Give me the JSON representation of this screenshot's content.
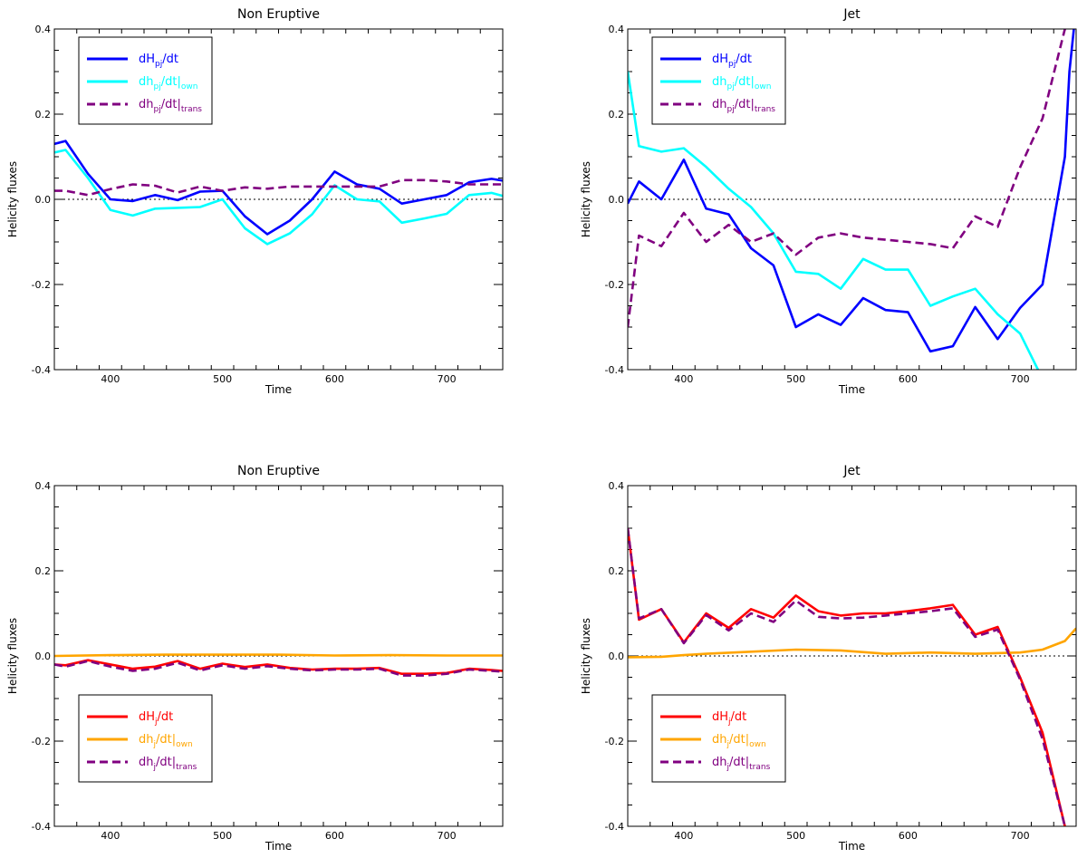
{
  "chart_data": [
    {
      "type": "line",
      "title": "Non Eruptive",
      "xlabel": "Time",
      "ylabel": "Helicity fluxes",
      "xlim": [
        350,
        750
      ],
      "ylim": [
        -0.4,
        0.4
      ],
      "xticks": [
        400,
        500,
        600,
        700
      ],
      "yticks": [
        -0.4,
        -0.2,
        0.0,
        0.2,
        0.4
      ],
      "ytick_labels": [
        "-0.4",
        "-0.2",
        "0.0",
        "0.2",
        "0.4"
      ],
      "legend_position": "top-left",
      "series": [
        {
          "name": "dH_pj/dt",
          "label": {
            "base": "dH",
            "sub": "pj",
            "rest": "/dt",
            "bar": false,
            "tail": ""
          },
          "color": "#0000ff",
          "dash": "solid",
          "x": [
            350,
            360,
            380,
            400,
            420,
            440,
            460,
            480,
            500,
            520,
            540,
            560,
            580,
            600,
            620,
            640,
            660,
            680,
            700,
            720,
            740,
            750
          ],
          "y": [
            0.13,
            0.137,
            0.06,
            0.0,
            -0.004,
            0.01,
            -0.002,
            0.018,
            0.02,
            -0.04,
            -0.082,
            -0.05,
            0.0,
            0.065,
            0.035,
            0.025,
            -0.01,
            0.0,
            0.01,
            0.04,
            0.048,
            0.044
          ]
        },
        {
          "name": "dh_pj/dt|own",
          "label": {
            "base": "dh",
            "sub": "pj",
            "rest": "/dt",
            "bar": true,
            "tail": "own"
          },
          "color": "#00ffff",
          "dash": "solid",
          "x": [
            350,
            360,
            380,
            400,
            420,
            440,
            460,
            480,
            500,
            520,
            540,
            560,
            580,
            600,
            620,
            640,
            660,
            680,
            700,
            720,
            740,
            750
          ],
          "y": [
            0.11,
            0.116,
            0.05,
            -0.025,
            -0.038,
            -0.022,
            -0.02,
            -0.018,
            0.0,
            -0.068,
            -0.105,
            -0.08,
            -0.035,
            0.033,
            0.0,
            -0.005,
            -0.055,
            -0.045,
            -0.034,
            0.01,
            0.015,
            0.008
          ]
        },
        {
          "name": "dh_pj/dt|trans",
          "label": {
            "base": "dh",
            "sub": "pj",
            "rest": "/dt",
            "bar": true,
            "tail": "trans"
          },
          "color": "#800080",
          "dash": "dashed",
          "x": [
            350,
            360,
            380,
            400,
            420,
            440,
            460,
            480,
            500,
            520,
            540,
            560,
            580,
            600,
            620,
            640,
            660,
            680,
            700,
            720,
            740,
            750
          ],
          "y": [
            0.02,
            0.02,
            0.01,
            0.024,
            0.035,
            0.032,
            0.016,
            0.03,
            0.02,
            0.028,
            0.025,
            0.03,
            0.03,
            0.03,
            0.03,
            0.03,
            0.045,
            0.045,
            0.042,
            0.035,
            0.035,
            0.035
          ]
        }
      ]
    },
    {
      "type": "line",
      "title": "Jet",
      "xlabel": "Time",
      "ylabel": "Helicity fluxes",
      "xlim": [
        350,
        750
      ],
      "ylim": [
        -0.4,
        0.4
      ],
      "xticks": [
        400,
        500,
        600,
        700
      ],
      "yticks": [
        -0.4,
        -0.2,
        0.0,
        0.2,
        0.4
      ],
      "ytick_labels": [
        "-0.4",
        "-0.2",
        "0.0",
        "0.2",
        "0.4"
      ],
      "legend_position": "top-left",
      "series": [
        {
          "name": "dH_pj/dt",
          "label": {
            "base": "dH",
            "sub": "pj",
            "rest": "/dt",
            "bar": false,
            "tail": ""
          },
          "color": "#0000ff",
          "dash": "solid",
          "x": [
            350,
            360,
            380,
            400,
            420,
            440,
            460,
            480,
            500,
            520,
            540,
            560,
            580,
            600,
            620,
            640,
            660,
            680,
            700,
            720,
            740,
            744,
            748
          ],
          "y": [
            -0.01,
            0.042,
            0.0,
            0.093,
            -0.022,
            -0.035,
            -0.115,
            -0.155,
            -0.3,
            -0.27,
            -0.295,
            -0.232,
            -0.26,
            -0.265,
            -0.357,
            -0.345,
            -0.253,
            -0.328,
            -0.255,
            -0.2,
            0.1,
            0.3,
            0.4
          ]
        },
        {
          "name": "dh_pj/dt|own",
          "label": {
            "base": "dh",
            "sub": "pj",
            "rest": "/dt",
            "bar": true,
            "tail": "own"
          },
          "color": "#00ffff",
          "dash": "solid",
          "x": [
            350,
            360,
            380,
            400,
            420,
            440,
            460,
            480,
            500,
            520,
            540,
            560,
            580,
            600,
            620,
            640,
            660,
            680,
            700,
            716
          ],
          "y": [
            0.3,
            0.125,
            0.112,
            0.12,
            0.076,
            0.025,
            -0.018,
            -0.08,
            -0.17,
            -0.175,
            -0.21,
            -0.14,
            -0.165,
            -0.165,
            -0.25,
            -0.228,
            -0.21,
            -0.27,
            -0.315,
            -0.4
          ]
        },
        {
          "name": "dh_pj/dt|trans",
          "label": {
            "base": "dh",
            "sub": "pj",
            "rest": "/dt",
            "bar": true,
            "tail": "trans"
          },
          "color": "#800080",
          "dash": "dashed",
          "x": [
            350,
            360,
            380,
            400,
            420,
            440,
            460,
            480,
            500,
            520,
            540,
            560,
            580,
            600,
            620,
            640,
            660,
            680,
            700,
            720,
            740,
            745
          ],
          "y": [
            -0.3,
            -0.085,
            -0.11,
            -0.032,
            -0.1,
            -0.06,
            -0.1,
            -0.08,
            -0.13,
            -0.09,
            -0.08,
            -0.09,
            -0.095,
            -0.1,
            -0.105,
            -0.115,
            -0.04,
            -0.065,
            0.075,
            0.19,
            0.4,
            0.4
          ]
        }
      ]
    },
    {
      "type": "line",
      "title": "Non Eruptive",
      "xlabel": "Time",
      "ylabel": "Helicity fluxes",
      "xlim": [
        350,
        750
      ],
      "ylim": [
        -0.4,
        0.4
      ],
      "xticks": [
        400,
        500,
        600,
        700
      ],
      "yticks": [
        -0.4,
        -0.2,
        0.0,
        0.2,
        0.4
      ],
      "ytick_labels": [
        "-0.4",
        "-0.2",
        "0.0",
        "0.2",
        "0.4"
      ],
      "legend_position": "bottom-left",
      "series": [
        {
          "name": "dH_j/dt",
          "label": {
            "base": "dH",
            "sub": "j",
            "rest": "/dt",
            "bar": false,
            "tail": ""
          },
          "color": "#ff0000",
          "dash": "solid",
          "x": [
            350,
            360,
            380,
            400,
            420,
            440,
            460,
            480,
            500,
            520,
            540,
            560,
            580,
            600,
            620,
            640,
            660,
            680,
            700,
            720,
            740,
            750
          ],
          "y": [
            -0.02,
            -0.022,
            -0.01,
            -0.02,
            -0.03,
            -0.025,
            -0.012,
            -0.03,
            -0.018,
            -0.026,
            -0.02,
            -0.028,
            -0.032,
            -0.03,
            -0.03,
            -0.028,
            -0.042,
            -0.042,
            -0.04,
            -0.03,
            -0.033,
            -0.035
          ]
        },
        {
          "name": "dh_j/dt|own",
          "label": {
            "base": "dh",
            "sub": "j",
            "rest": "/dt",
            "bar": true,
            "tail": "own"
          },
          "color": "#ffa500",
          "dash": "solid",
          "x": [
            350,
            400,
            450,
            500,
            550,
            600,
            650,
            700,
            750
          ],
          "y": [
            0.0,
            0.002,
            0.003,
            0.003,
            0.003,
            0.001,
            0.002,
            0.001,
            0.001
          ]
        },
        {
          "name": "dh_j/dt|trans",
          "label": {
            "base": "dh",
            "sub": "j",
            "rest": "/dt",
            "bar": true,
            "tail": "trans"
          },
          "color": "#800080",
          "dash": "dashed",
          "x": [
            350,
            360,
            380,
            400,
            420,
            440,
            460,
            480,
            500,
            520,
            540,
            560,
            580,
            600,
            620,
            640,
            660,
            680,
            700,
            720,
            740,
            750
          ],
          "y": [
            -0.02,
            -0.025,
            -0.012,
            -0.025,
            -0.035,
            -0.03,
            -0.016,
            -0.034,
            -0.022,
            -0.03,
            -0.024,
            -0.03,
            -0.034,
            -0.032,
            -0.032,
            -0.03,
            -0.046,
            -0.046,
            -0.042,
            -0.032,
            -0.035,
            -0.037
          ]
        }
      ]
    },
    {
      "type": "line",
      "title": "Jet",
      "xlabel": "Time",
      "ylabel": "Helicity fluxes",
      "xlim": [
        350,
        750
      ],
      "ylim": [
        -0.4,
        0.4
      ],
      "xticks": [
        400,
        500,
        600,
        700
      ],
      "yticks": [
        -0.4,
        -0.2,
        0.0,
        0.2,
        0.4
      ],
      "ytick_labels": [
        "-0.4",
        "-0.2",
        "0.0",
        "0.2",
        "0.4"
      ],
      "legend_position": "bottom-left",
      "series": [
        {
          "name": "dH_j/dt",
          "label": {
            "base": "dH",
            "sub": "j",
            "rest": "/dt",
            "bar": false,
            "tail": ""
          },
          "color": "#ff0000",
          "dash": "solid",
          "x": [
            350,
            360,
            380,
            400,
            420,
            440,
            460,
            480,
            500,
            520,
            540,
            560,
            580,
            600,
            620,
            640,
            660,
            680,
            700,
            720,
            740
          ],
          "y": [
            0.3,
            0.085,
            0.11,
            0.032,
            0.1,
            0.066,
            0.11,
            0.09,
            0.142,
            0.105,
            0.095,
            0.1,
            0.1,
            0.105,
            0.112,
            0.12,
            0.05,
            0.068,
            -0.05,
            -0.18,
            -0.4
          ]
        },
        {
          "name": "dh_j/dt|own",
          "label": {
            "base": "dh",
            "sub": "j",
            "rest": "/dt",
            "bar": true,
            "tail": "own"
          },
          "color": "#ffa500",
          "dash": "solid",
          "x": [
            350,
            380,
            400,
            420,
            460,
            500,
            540,
            580,
            620,
            660,
            700,
            720,
            740,
            750
          ],
          "y": [
            -0.003,
            -0.002,
            0.002,
            0.005,
            0.01,
            0.015,
            0.013,
            0.005,
            0.008,
            0.005,
            0.008,
            0.015,
            0.035,
            0.065
          ]
        },
        {
          "name": "dh_j/dt|trans",
          "label": {
            "base": "dh",
            "sub": "j",
            "rest": "/dt",
            "bar": true,
            "tail": "trans"
          },
          "color": "#800080",
          "dash": "dashed",
          "x": [
            350,
            360,
            380,
            400,
            420,
            440,
            460,
            480,
            500,
            520,
            540,
            560,
            580,
            600,
            620,
            640,
            660,
            680,
            700,
            720,
            740
          ],
          "y": [
            0.3,
            0.088,
            0.11,
            0.03,
            0.096,
            0.06,
            0.1,
            0.08,
            0.13,
            0.092,
            0.088,
            0.09,
            0.095,
            0.1,
            0.105,
            0.112,
            0.045,
            0.062,
            -0.055,
            -0.195,
            -0.4
          ]
        }
      ]
    }
  ]
}
